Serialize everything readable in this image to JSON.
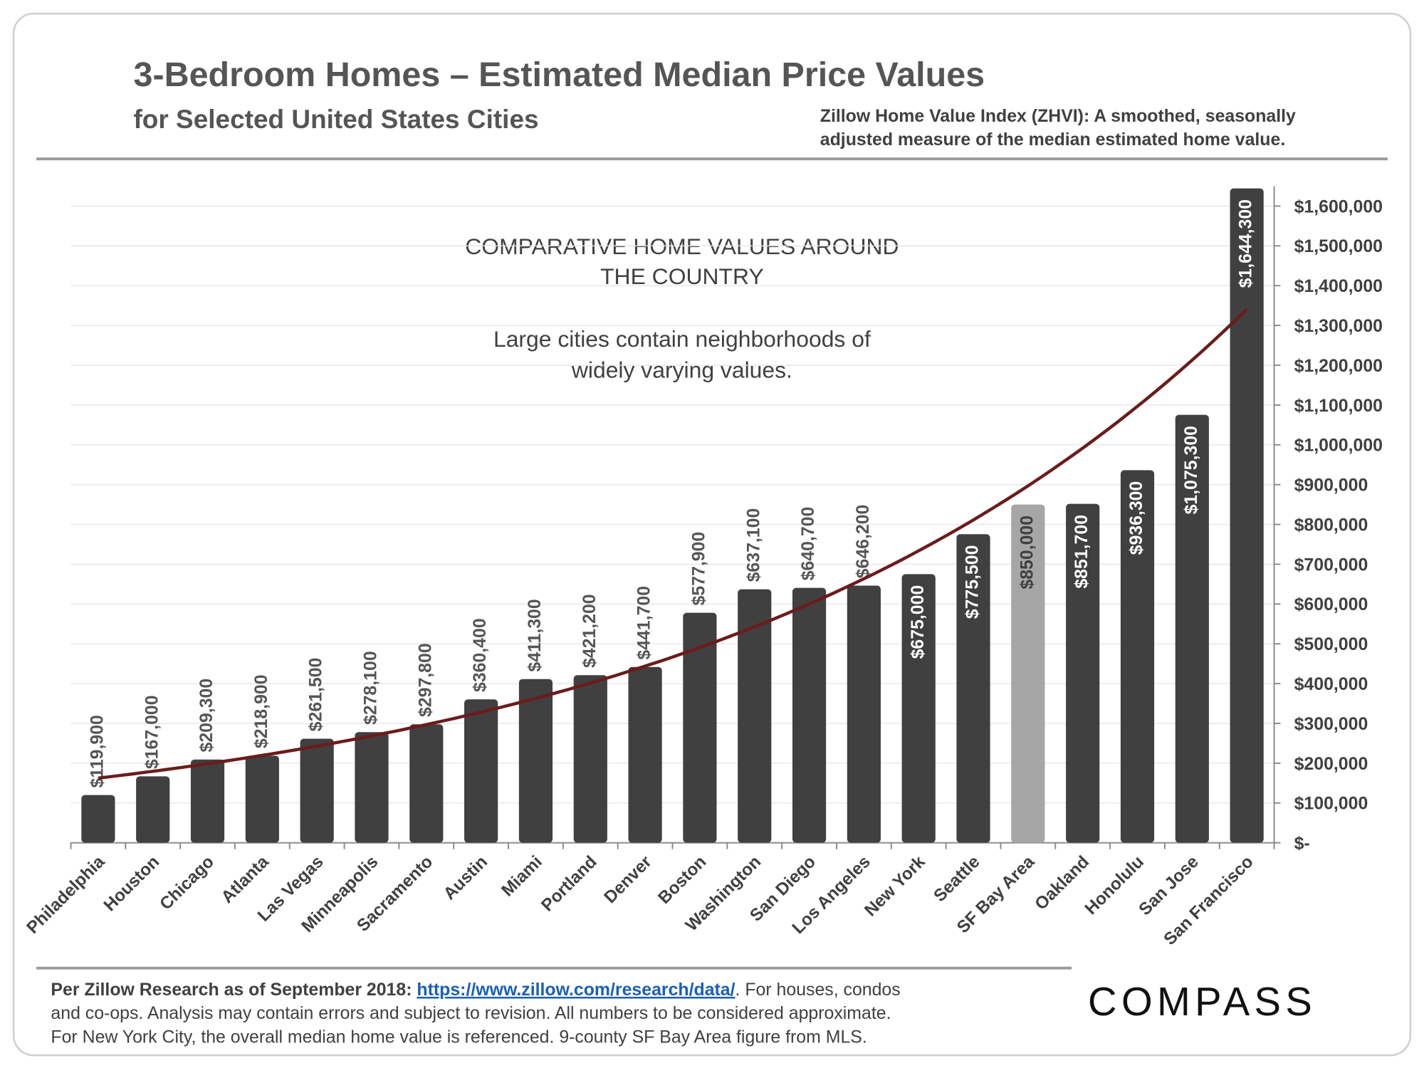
{
  "chart_data": {
    "type": "bar",
    "title": "3-Bedroom Homes – Estimated Median Price Values",
    "subtitle": "for Selected United States Cities",
    "note": [
      "Zillow Home Value Index (ZHVI): A smoothed, seasonally",
      "adjusted measure of the median estimated home value."
    ],
    "annotations": [
      [
        "COMPARATIVE HOME VALUES AROUND",
        "THE COUNTRY"
      ],
      [
        "Large cities contain neighborhoods of",
        "widely varying values."
      ]
    ],
    "categories": [
      "Philadelphia",
      "Houston",
      "Chicago",
      "Atlanta",
      "Las Vegas",
      "Minneapolis",
      "Sacramento",
      "Austin",
      "Miami",
      "Portland",
      "Denver",
      "Boston",
      "Washington",
      "San Diego",
      "Los Angeles",
      "New York",
      "Seattle",
      "SF Bay Area",
      "Oakland",
      "Honolulu",
      "San Jose",
      "San Francisco"
    ],
    "values": [
      119900,
      167000,
      209300,
      218900,
      261500,
      278100,
      297800,
      360400,
      411300,
      421200,
      441700,
      577900,
      637100,
      640700,
      646200,
      675000,
      775500,
      850000,
      851700,
      936300,
      1075300,
      1644300
    ],
    "value_labels": [
      "$119,900",
      "$167,000",
      "$209,300",
      "$218,900",
      "$261,500",
      "$278,100",
      "$297,800",
      "$360,400",
      "$411,300",
      "$421,200",
      "$441,700",
      "$577,900",
      "$637,100",
      "$640,700",
      "$646,200",
      "$675,000",
      "$775,500",
      "$850,000",
      "$851,700",
      "$936,300",
      "$1,075,300",
      "$1,644,300"
    ],
    "colors": [
      "#404040",
      "#404040",
      "#404040",
      "#404040",
      "#404040",
      "#404040",
      "#404040",
      "#404040",
      "#404040",
      "#404040",
      "#404040",
      "#404040",
      "#404040",
      "#404040",
      "#404040",
      "#404040",
      "#404040",
      "#a6a6a6",
      "#404040",
      "#404040",
      "#404040",
      "#404040"
    ],
    "trendline": {
      "type": "exponential",
      "color": "#6b1c1c"
    },
    "ylim": [
      0,
      1650000
    ],
    "yticks": [
      {
        "value": 0,
        "label": "$-"
      },
      {
        "value": 100000,
        "label": "$100,000"
      },
      {
        "value": 200000,
        "label": "$200,000"
      },
      {
        "value": 300000,
        "label": "$300,000"
      },
      {
        "value": 400000,
        "label": "$400,000"
      },
      {
        "value": 500000,
        "label": "$500,000"
      },
      {
        "value": 600000,
        "label": "$600,000"
      },
      {
        "value": 700000,
        "label": "$700,000"
      },
      {
        "value": 800000,
        "label": "$800,000"
      },
      {
        "value": 900000,
        "label": "$900,000"
      },
      {
        "value": 1000000,
        "label": "$1,000,000"
      },
      {
        "value": 1100000,
        "label": "$1,100,000"
      },
      {
        "value": 1200000,
        "label": "$1,200,000"
      },
      {
        "value": 1300000,
        "label": "$1,300,000"
      },
      {
        "value": 1400000,
        "label": "$1,400,000"
      },
      {
        "value": 1500000,
        "label": "$1,500,000"
      },
      {
        "value": 1600000,
        "label": "$1,600,000"
      }
    ],
    "yaxis_side": "right",
    "grid": true,
    "footer": {
      "source_label": "Per Zillow Research as of September 2018:",
      "source_url": "https://www.zillow.com/research/data/",
      "lines": [
        ". For houses, condos",
        "and co-ops. Analysis may contain errors and subject to revision. All numbers to be considered approximate.",
        "For New York City, the overall median home value is referenced. 9-county SF Bay Area figure from MLS."
      ]
    },
    "logo": "COMPASS"
  }
}
